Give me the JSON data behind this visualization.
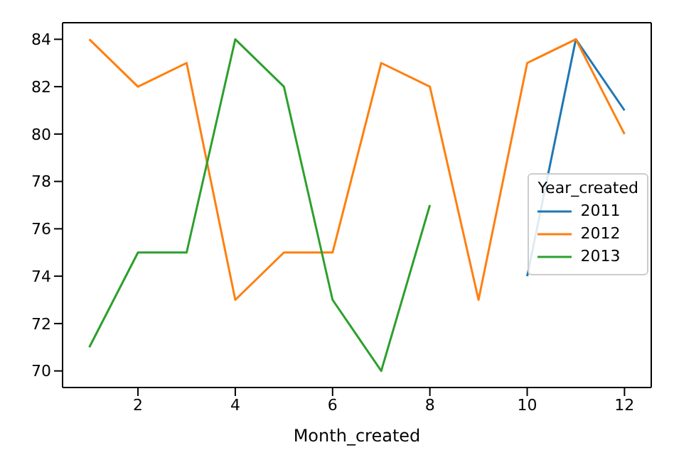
{
  "chart_data": {
    "type": "line",
    "xlabel": "Month_created",
    "legend_title": "Year_created",
    "legend": "right",
    "grid": false,
    "marker": "none",
    "line_style": "solid",
    "xlim": [
      0.45,
      12.55
    ],
    "xticks": [
      2,
      4,
      6,
      8,
      10,
      12
    ],
    "ylim": [
      69.3,
      84.7
    ],
    "yticks": [
      70,
      72,
      74,
      76,
      78,
      80,
      82,
      84
    ],
    "series": [
      {
        "name": "2011",
        "color": "#1f77b4",
        "x": [
          10,
          11,
          12
        ],
        "values": [
          74,
          84,
          81
        ]
      },
      {
        "name": "2012",
        "color": "#ff7f0e",
        "x": [
          1,
          2,
          3,
          4,
          5,
          6,
          7,
          8,
          9,
          10,
          11,
          12
        ],
        "values": [
          84,
          82,
          83,
          73,
          75,
          75,
          83,
          82,
          73,
          83,
          84,
          80
        ]
      },
      {
        "name": "2013",
        "color": "#2ca02c",
        "x": [
          1,
          2,
          3,
          4,
          5,
          6,
          7,
          8
        ],
        "values": [
          71,
          75,
          75,
          84,
          82,
          73,
          70,
          77
        ]
      }
    ]
  }
}
